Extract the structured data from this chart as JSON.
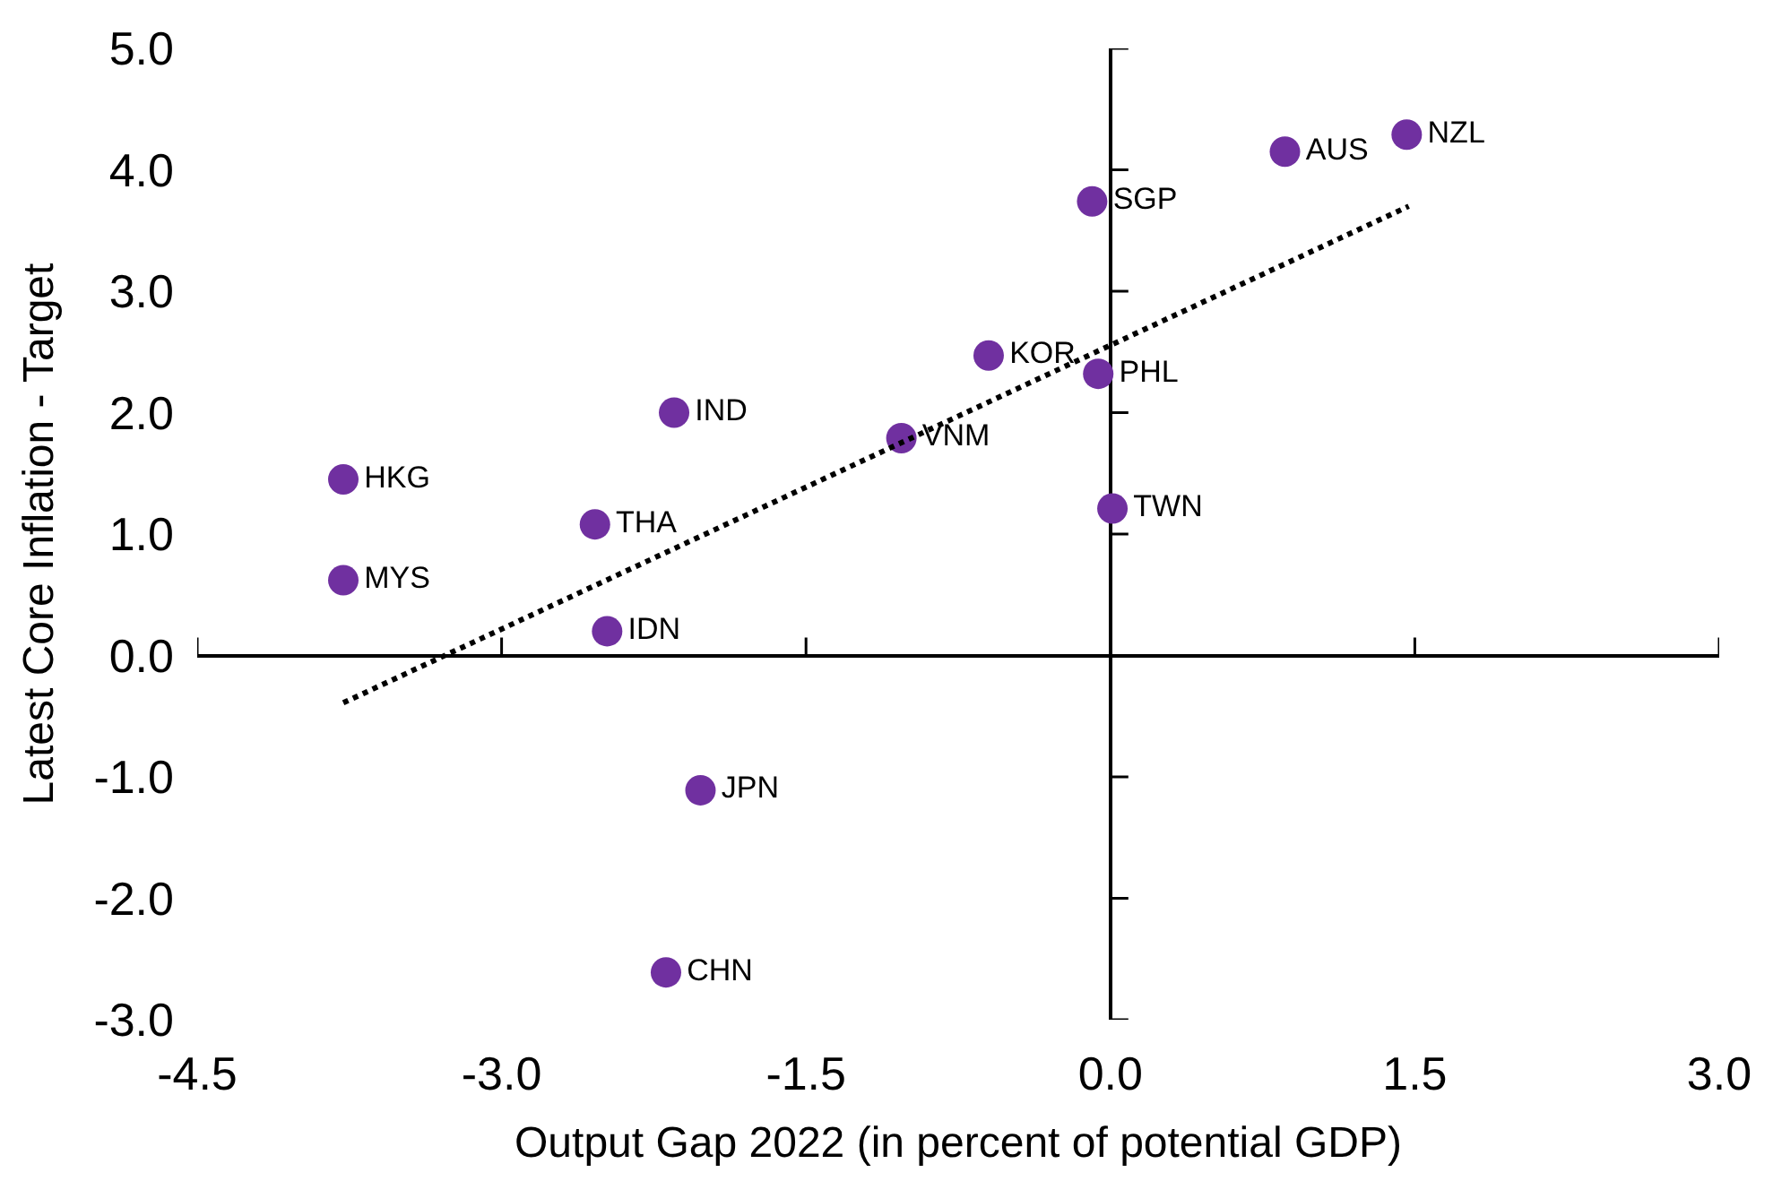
{
  "chart_data": {
    "type": "scatter",
    "xlabel": "Output Gap 2022 (in percent of potential GDP)",
    "ylabel": "Latest Core Inflation - Target",
    "xlim": [
      -4.5,
      3.0
    ],
    "ylim": [
      -3.0,
      5.0
    ],
    "xticks": [
      {
        "value": -4.5,
        "label": "-4.5"
      },
      {
        "value": -3.0,
        "label": "-3.0"
      },
      {
        "value": -1.5,
        "label": "-1.5"
      },
      {
        "value": 0,
        "label": "0.0"
      },
      {
        "value": 1.5,
        "label": "1.5"
      },
      {
        "value": 3.0,
        "label": "3.0"
      }
    ],
    "yticks": [
      {
        "value": -3,
        "label": "-3.0"
      },
      {
        "value": -2,
        "label": "-2.0"
      },
      {
        "value": -1,
        "label": "-1.0"
      },
      {
        "value": 0,
        "label": "0.0"
      },
      {
        "value": 1,
        "label": "1.0"
      },
      {
        "value": 2,
        "label": "2.0"
      },
      {
        "value": 3,
        "label": "3.0"
      },
      {
        "value": 4,
        "label": "4.0"
      },
      {
        "value": 5,
        "label": "5.0"
      }
    ],
    "marker": "circle",
    "series": [
      {
        "color": "#7030a0",
        "x": [
          0.86,
          1.46,
          -0.09,
          -0.6,
          -0.06,
          -2.15,
          -1.03,
          -3.78,
          -2.54,
          0.01,
          -3.78,
          -2.48,
          -2.02,
          -2.19
        ],
        "values": [
          4.15,
          4.29,
          3.74,
          2.47,
          2.32,
          2.0,
          1.79,
          1.45,
          1.08,
          1.21,
          0.62,
          0.2,
          -1.11,
          -2.61
        ],
        "value_labels": [
          "AUS",
          "NZL",
          "SGP",
          "KOR",
          "PHL",
          "IND",
          "VNM",
          "HKG",
          "THA",
          "TWN",
          "MYS",
          "IDN",
          "JPN",
          "CHN"
        ]
      },
      {
        "type": "line",
        "color": "#000000",
        "line_style": "dotted",
        "marker": "none",
        "x": [
          -3.78,
          1.47
        ],
        "values": [
          -0.39,
          3.7
        ]
      }
    ]
  }
}
